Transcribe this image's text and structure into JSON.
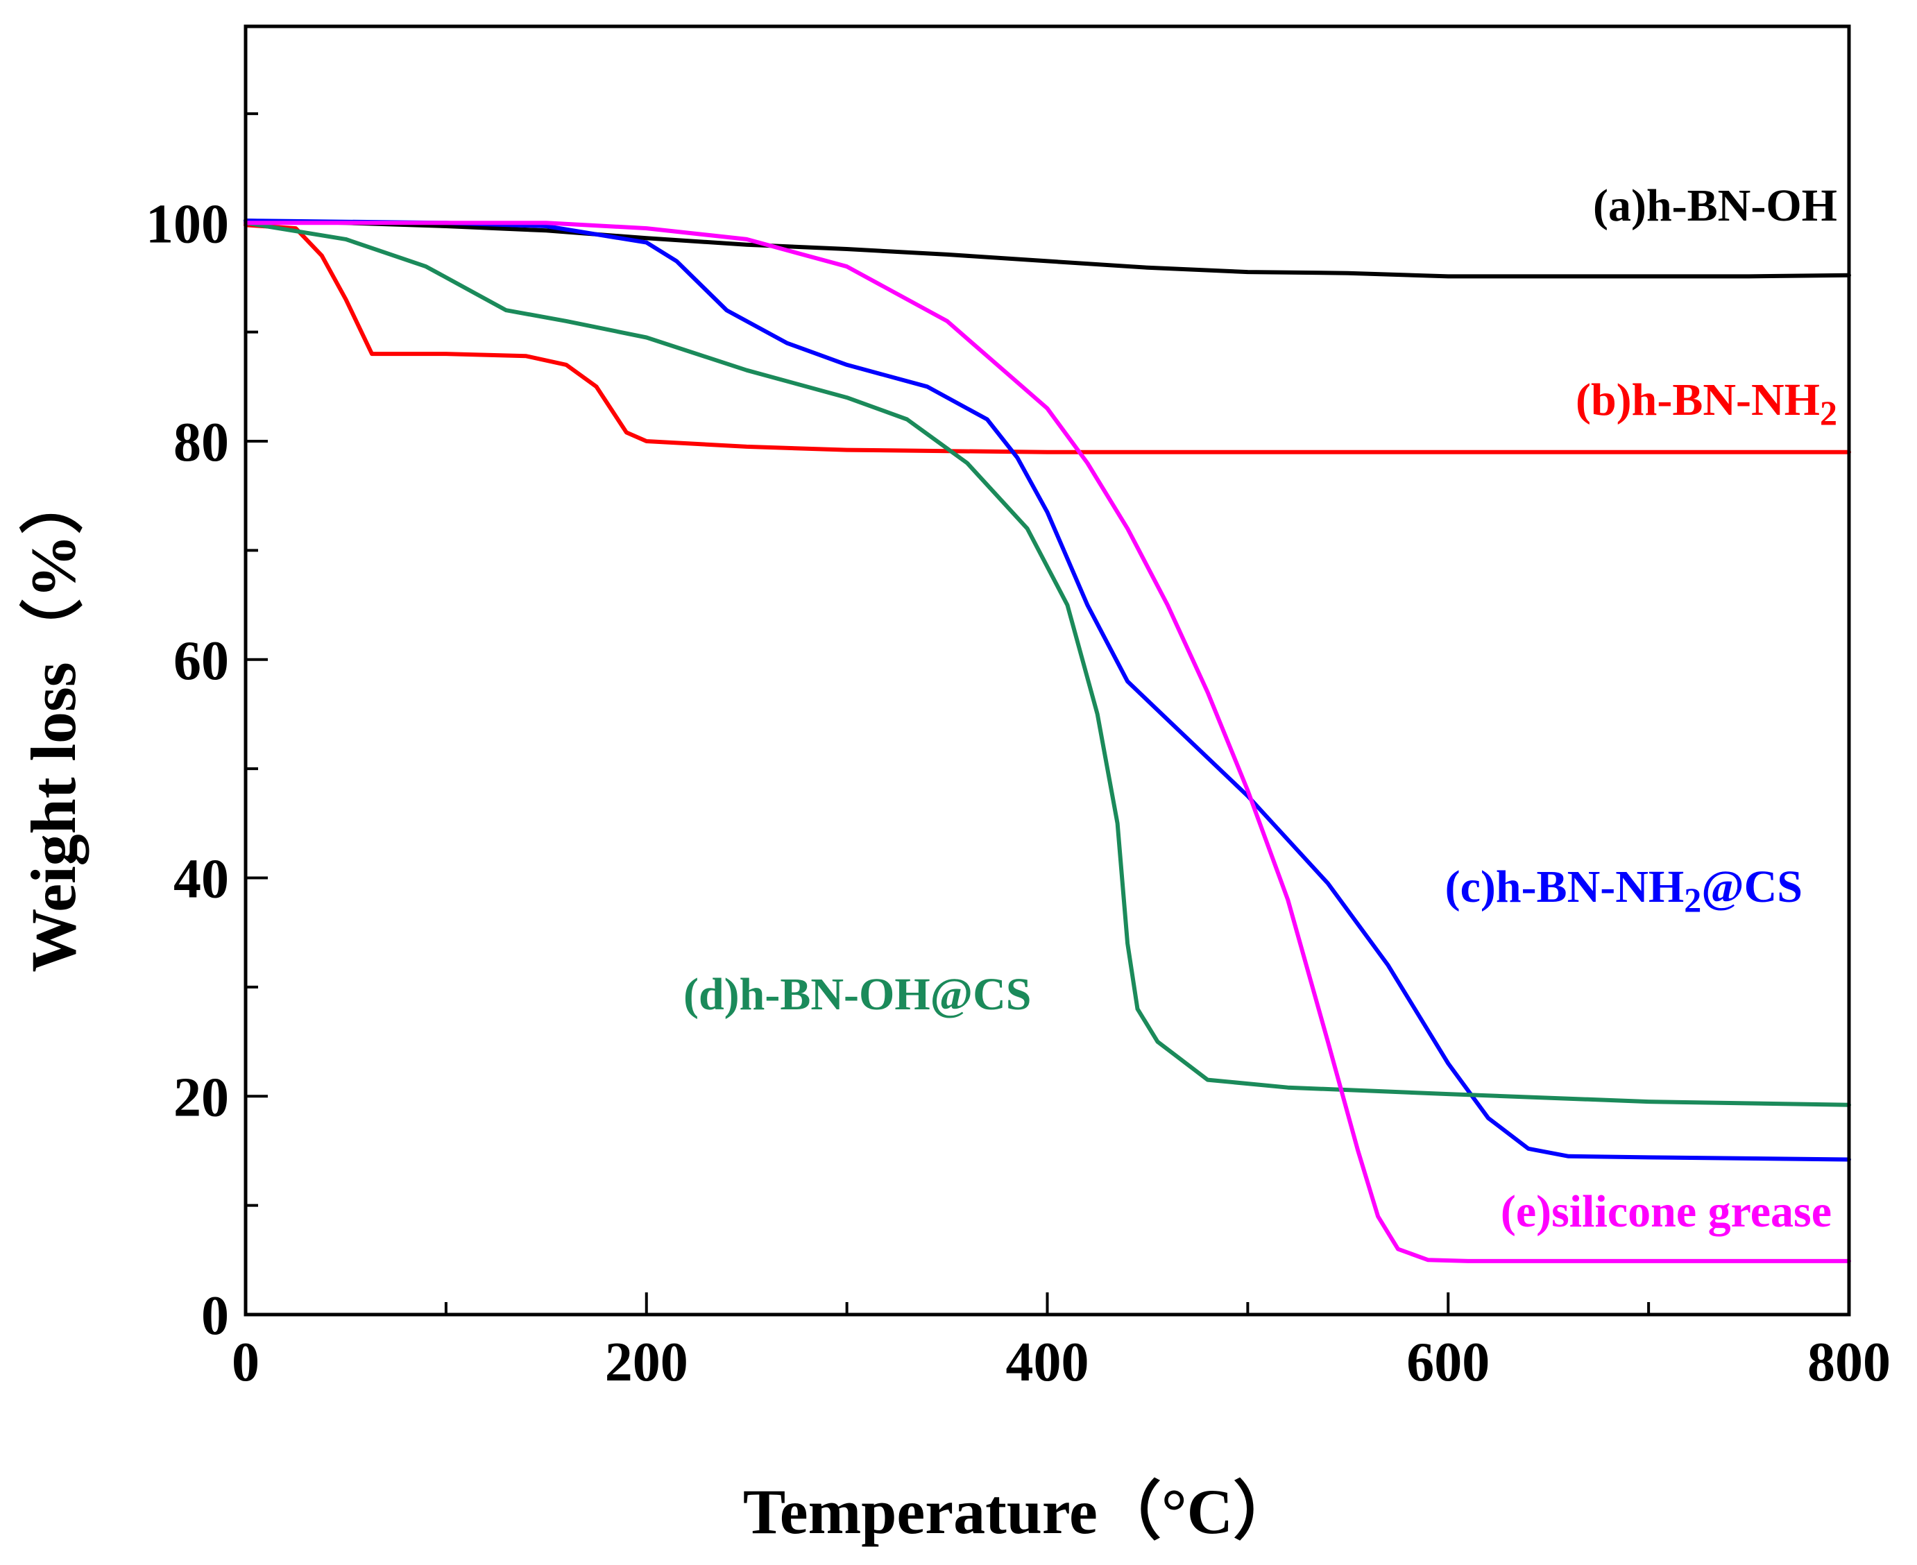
{
  "chart_data": {
    "type": "line",
    "title": "",
    "xlabel": "Temperature（°C）",
    "ylabel": "Weight loss（%）",
    "xlim": [
      0,
      800
    ],
    "ylim": [
      0,
      118
    ],
    "xticks": [
      0,
      200,
      400,
      600,
      800
    ],
    "yticks": [
      0,
      20,
      40,
      60,
      80,
      100
    ],
    "grid": false,
    "series": [
      {
        "name": "(a)h-BN-OH",
        "label_main": "(a)h-BN-OH",
        "label_sub": "",
        "label_tail": "",
        "color": "#000000",
        "x": [
          0,
          50,
          100,
          150,
          200,
          250,
          300,
          350,
          400,
          450,
          500,
          550,
          600,
          650,
          700,
          750,
          800
        ],
        "y": [
          100.2,
          100.0,
          99.7,
          99.3,
          98.6,
          98.0,
          97.6,
          97.1,
          96.5,
          95.9,
          95.5,
          95.4,
          95.1,
          95.1,
          95.1,
          95.1,
          95.2
        ]
      },
      {
        "name": "(b)h-BN-NH2",
        "label_main": "(b)h-BN-NH",
        "label_sub": "2",
        "label_tail": "",
        "color": "#ff0000",
        "x": [
          0,
          25,
          38,
          50,
          63,
          100,
          140,
          160,
          175,
          190,
          200,
          250,
          300,
          400,
          500,
          600,
          700,
          800
        ],
        "y": [
          99.8,
          99.5,
          97.0,
          93.0,
          88.0,
          88.0,
          87.8,
          87.0,
          85.0,
          80.8,
          80.0,
          79.5,
          79.2,
          79.0,
          79.0,
          79.0,
          79.0,
          79.0
        ]
      },
      {
        "name": "(c)h-BN-NH2@CS",
        "label_main": "(c)h-BN-NH",
        "label_sub": "2",
        "label_tail": "@CS",
        "color": "#0000ff",
        "x": [
          0,
          100,
          150,
          200,
          215,
          240,
          270,
          300,
          340,
          370,
          385,
          400,
          420,
          440,
          460,
          500,
          540,
          570,
          600,
          620,
          640,
          660,
          700,
          800
        ],
        "y": [
          100.2,
          100.0,
          99.7,
          98.2,
          96.5,
          92.0,
          89.0,
          87.0,
          85.0,
          82.0,
          78.5,
          73.5,
          65.0,
          58.0,
          54.5,
          47.5,
          39.5,
          32.0,
          23.0,
          18.0,
          15.2,
          14.5,
          14.4,
          14.2
        ]
      },
      {
        "name": "(d)h-BN-OH@CS",
        "label_main": "(d)h-BN-OH@CS",
        "label_sub": "",
        "label_tail": "",
        "color": "#1b8a5a",
        "x": [
          0,
          50,
          90,
          110,
          130,
          160,
          200,
          250,
          300,
          330,
          360,
          390,
          410,
          425,
          435,
          440,
          445,
          455,
          480,
          520,
          600,
          700,
          800
        ],
        "y": [
          100.0,
          98.5,
          96.0,
          94.0,
          92.0,
          91.0,
          89.5,
          86.5,
          84.0,
          82.0,
          78.0,
          72.0,
          65.0,
          55.0,
          45.0,
          34.0,
          28.0,
          25.0,
          21.5,
          20.8,
          20.2,
          19.5,
          19.2
        ]
      },
      {
        "name": "(e)silicone grease",
        "label_main": "(e)silicone grease",
        "label_sub": "",
        "label_tail": "",
        "color": "#ff00ff",
        "x": [
          0,
          150,
          200,
          250,
          300,
          350,
          400,
          420,
          440,
          460,
          480,
          500,
          520,
          540,
          555,
          565,
          575,
          590,
          610,
          800
        ],
        "y": [
          100.0,
          100.0,
          99.5,
          98.5,
          96.0,
          91.0,
          83.0,
          78.0,
          72.0,
          65.0,
          57.0,
          48.0,
          38.0,
          25.0,
          15.0,
          9.0,
          6.0,
          5.0,
          4.9,
          4.9
        ]
      }
    ]
  }
}
